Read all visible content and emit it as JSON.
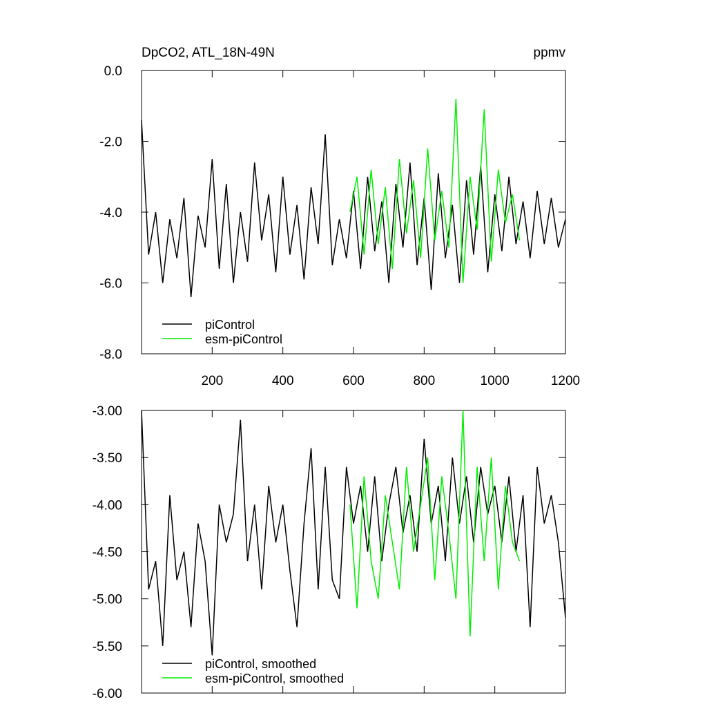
{
  "chart_data": [
    {
      "type": "line",
      "title": "DpCO2, ATL_18N-49N",
      "units": "ppmv",
      "xlim": [
        0,
        1200
      ],
      "xticks": [
        200,
        400,
        600,
        800,
        1000,
        1200
      ],
      "ylim": [
        -8,
        0
      ],
      "yticks": [
        {
          "value": 0,
          "label": "0.0"
        },
        {
          "value": -2,
          "label": "-2.0"
        },
        {
          "value": -4,
          "label": "-4.0"
        },
        {
          "value": -6,
          "label": "-6.0"
        },
        {
          "value": -8,
          "label": "-8.0"
        }
      ],
      "legend": "lower left",
      "series": [
        {
          "name": "piControl",
          "color": "#000000",
          "x": [
            0,
            20,
            40,
            60,
            80,
            100,
            120,
            140,
            160,
            180,
            200,
            220,
            240,
            260,
            280,
            300,
            320,
            340,
            360,
            380,
            400,
            420,
            440,
            460,
            480,
            500,
            520,
            540,
            560,
            580,
            600,
            620,
            640,
            660,
            680,
            700,
            720,
            740,
            760,
            780,
            800,
            820,
            840,
            860,
            880,
            900,
            920,
            940,
            960,
            980,
            1000,
            1020,
            1040,
            1060,
            1080,
            1100,
            1120,
            1140,
            1160,
            1180,
            1200
          ],
          "values": [
            -1.4,
            -5.2,
            -4.0,
            -6.0,
            -4.2,
            -5.3,
            -3.6,
            -6.4,
            -4.1,
            -5.0,
            -2.5,
            -5.6,
            -3.2,
            -6.0,
            -4.0,
            -5.4,
            -2.6,
            -4.8,
            -3.5,
            -5.7,
            -3.0,
            -5.2,
            -3.8,
            -5.9,
            -3.3,
            -4.9,
            -1.8,
            -5.5,
            -4.2,
            -5.3,
            -3.4,
            -5.6,
            -3.0,
            -5.1,
            -3.7,
            -6.0,
            -3.2,
            -5.0,
            -2.6,
            -5.5,
            -3.6,
            -6.2,
            -2.9,
            -5.3,
            -3.8,
            -6.0,
            -3.1,
            -5.2,
            -2.7,
            -5.7,
            -3.5,
            -5.1,
            -3.0,
            -4.9,
            -3.7,
            -5.3,
            -3.4,
            -4.9,
            -3.6,
            -5.0,
            -4.2
          ]
        },
        {
          "name": "esm-piControl",
          "color": "#00ee00",
          "x": [
            590,
            610,
            630,
            650,
            670,
            690,
            710,
            730,
            750,
            770,
            790,
            810,
            830,
            850,
            870,
            890,
            910,
            930,
            950,
            970,
            990,
            1010,
            1030,
            1050,
            1070
          ],
          "values": [
            -4.0,
            -3.0,
            -5.2,
            -2.8,
            -4.9,
            -3.3,
            -5.6,
            -2.5,
            -4.6,
            -3.1,
            -5.3,
            -2.2,
            -4.8,
            -3.4,
            -5.0,
            -0.8,
            -6.0,
            -3.0,
            -4.5,
            -1.1,
            -5.4,
            -2.8,
            -4.3,
            -3.5,
            -4.8
          ]
        }
      ]
    },
    {
      "type": "line",
      "xlim": [
        0,
        1200
      ],
      "xticks": [
        200,
        400,
        600,
        800,
        1000,
        1200
      ],
      "ylim": [
        -6,
        -3
      ],
      "yticks": [
        {
          "value": -3,
          "label": "-3.00"
        },
        {
          "value": -3.5,
          "label": "-3.50"
        },
        {
          "value": -4,
          "label": "-4.00"
        },
        {
          "value": -4.5,
          "label": "-4.50"
        },
        {
          "value": -5,
          "label": "-5.00"
        },
        {
          "value": -5.5,
          "label": "-5.50"
        },
        {
          "value": -6,
          "label": "-6.00"
        }
      ],
      "legend": "lower left",
      "series": [
        {
          "name": "piControl, smoothed",
          "color": "#000000",
          "x": [
            0,
            20,
            40,
            60,
            80,
            100,
            120,
            140,
            160,
            180,
            200,
            220,
            240,
            260,
            280,
            300,
            320,
            340,
            360,
            380,
            400,
            420,
            440,
            460,
            480,
            500,
            520,
            540,
            560,
            580,
            600,
            620,
            640,
            660,
            680,
            700,
            720,
            740,
            760,
            780,
            800,
            820,
            840,
            860,
            880,
            900,
            920,
            940,
            960,
            980,
            1000,
            1020,
            1040,
            1060,
            1080,
            1100,
            1120,
            1140,
            1160,
            1180,
            1200
          ],
          "values": [
            -3.0,
            -4.9,
            -4.6,
            -5.5,
            -3.9,
            -4.8,
            -4.5,
            -5.3,
            -4.2,
            -4.6,
            -5.6,
            -4.0,
            -4.4,
            -4.1,
            -3.1,
            -4.6,
            -4.0,
            -4.9,
            -3.8,
            -4.4,
            -4.0,
            -4.7,
            -5.3,
            -4.2,
            -3.4,
            -4.9,
            -3.6,
            -4.8,
            -5.0,
            -3.6,
            -4.2,
            -3.8,
            -4.5,
            -3.7,
            -4.6,
            -4.0,
            -3.6,
            -4.3,
            -3.9,
            -4.5,
            -3.3,
            -4.2,
            -3.8,
            -4.6,
            -3.5,
            -4.2,
            -3.7,
            -4.4,
            -3.6,
            -4.1,
            -3.8,
            -4.4,
            -3.7,
            -4.5,
            -3.9,
            -5.3,
            -3.6,
            -4.2,
            -3.9,
            -4.4,
            -5.2
          ]
        },
        {
          "name": "esm-piControl, smoothed",
          "color": "#00ee00",
          "x": [
            590,
            610,
            630,
            650,
            670,
            690,
            710,
            730,
            750,
            770,
            790,
            810,
            830,
            850,
            870,
            890,
            910,
            930,
            950,
            970,
            990,
            1010,
            1030,
            1050,
            1070
          ],
          "values": [
            -4.0,
            -5.1,
            -3.7,
            -4.6,
            -5.0,
            -3.9,
            -4.4,
            -4.9,
            -3.6,
            -4.5,
            -4.0,
            -3.5,
            -4.8,
            -3.7,
            -4.3,
            -5.0,
            -3.0,
            -5.4,
            -3.6,
            -4.6,
            -3.5,
            -4.9,
            -3.8,
            -4.4,
            -4.6
          ]
        }
      ]
    }
  ]
}
